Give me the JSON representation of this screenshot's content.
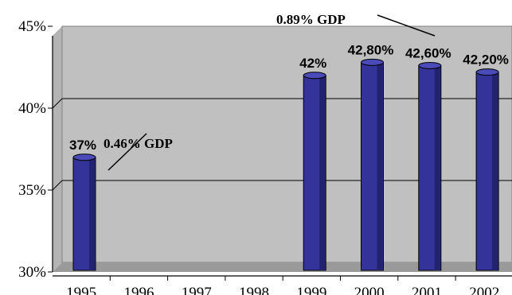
{
  "chart_data": {
    "type": "bar",
    "categories": [
      "1995",
      "1996",
      "1997",
      "1998",
      "1999",
      "2000",
      "2001",
      "2002"
    ],
    "values": [
      37,
      null,
      null,
      null,
      42,
      42.8,
      42.6,
      42.2
    ],
    "data_labels": [
      "37%",
      "",
      "",
      "",
      "42%",
      "42,80%",
      "42,60%",
      "42,20%"
    ],
    "ylim": [
      30,
      45
    ],
    "y_ticks": [
      {
        "value": 30,
        "label": "30%"
      },
      {
        "value": 35,
        "label": "35%"
      },
      {
        "value": 40,
        "label": "40%"
      },
      {
        "value": 45,
        "label": "45%"
      }
    ],
    "annotations": [
      {
        "text": "0.46% GDP"
      },
      {
        "text": "0.89% GDP"
      }
    ],
    "grid": true,
    "bar_color": "#333399",
    "plot_background": "#c0c0c0"
  }
}
